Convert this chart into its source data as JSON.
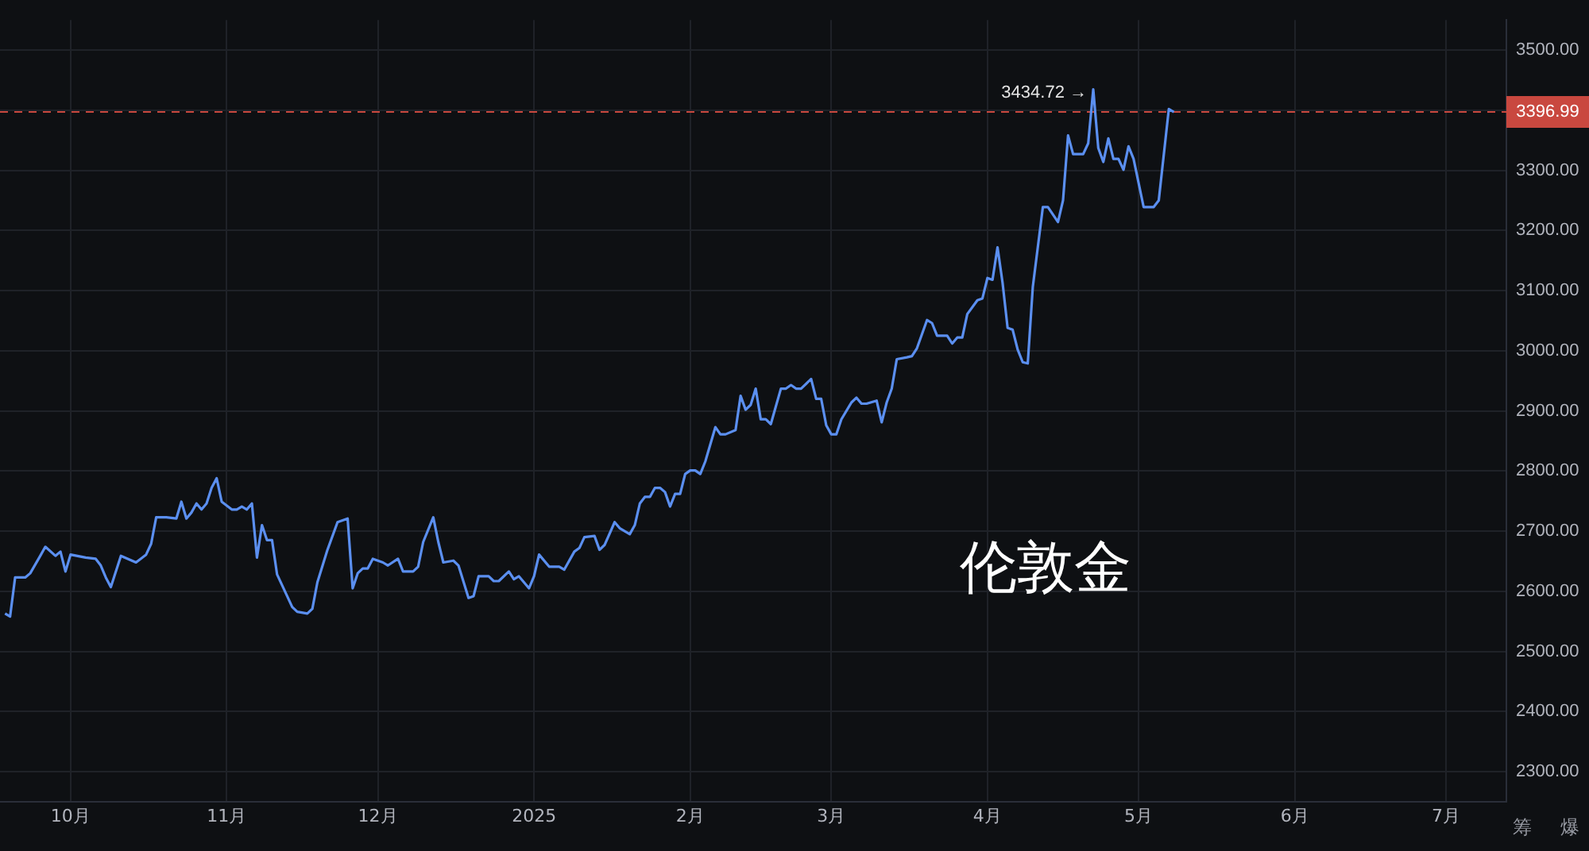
{
  "chart_data": {
    "type": "line",
    "marker": "none",
    "grid": true,
    "x": [
      "2024-09-18",
      "2024-09-19",
      "2024-09-20",
      "2024-09-22",
      "2024-09-23",
      "2024-09-25",
      "2024-09-26",
      "2024-09-28",
      "2024-09-29",
      "2024-09-30",
      "2024-10-01",
      "2024-10-04",
      "2024-10-06",
      "2024-10-07",
      "2024-10-08",
      "2024-10-09",
      "2024-10-11",
      "2024-10-14",
      "2024-10-16",
      "2024-10-17",
      "2024-10-18",
      "2024-10-20",
      "2024-10-22",
      "2024-10-23",
      "2024-10-24",
      "2024-10-25",
      "2024-10-26",
      "2024-10-27",
      "2024-10-28",
      "2024-10-29",
      "2024-10-30",
      "2024-10-31",
      "2024-11-02",
      "2024-11-03",
      "2024-11-04",
      "2024-11-05",
      "2024-11-06",
      "2024-11-07",
      "2024-11-08",
      "2024-11-09",
      "2024-11-10",
      "2024-11-11",
      "2024-11-14",
      "2024-11-15",
      "2024-11-17",
      "2024-11-18",
      "2024-11-19",
      "2024-11-21",
      "2024-11-23",
      "2024-11-24",
      "2024-11-25",
      "2024-11-26",
      "2024-11-27",
      "2024-11-28",
      "2024-11-29",
      "2024-11-30",
      "2024-12-02",
      "2024-12-03",
      "2024-12-05",
      "2024-12-06",
      "2024-12-08",
      "2024-12-09",
      "2024-12-10",
      "2024-12-12",
      "2024-12-13",
      "2024-12-14",
      "2024-12-16",
      "2024-12-17",
      "2024-12-19",
      "2024-12-20",
      "2024-12-21",
      "2024-12-23",
      "2024-12-24",
      "2024-12-25",
      "2024-12-27",
      "2024-12-28",
      "2024-12-29",
      "2024-12-31",
      "2025-01-01",
      "2025-01-02",
      "2025-01-04",
      "2025-01-06",
      "2025-01-07",
      "2025-01-09",
      "2025-01-10",
      "2025-01-11",
      "2025-01-13",
      "2025-01-14",
      "2025-01-15",
      "2025-01-17",
      "2025-01-18",
      "2025-01-20",
      "2025-01-21",
      "2025-01-22",
      "2025-01-23",
      "2025-01-24",
      "2025-01-25",
      "2025-01-26",
      "2025-01-27",
      "2025-01-28",
      "2025-01-29",
      "2025-01-30",
      "2025-01-31",
      "2025-02-01",
      "2025-02-02",
      "2025-02-03",
      "2025-02-04",
      "2025-02-06",
      "2025-02-07",
      "2025-02-08",
      "2025-02-10",
      "2025-02-11",
      "2025-02-12",
      "2025-02-13",
      "2025-02-14",
      "2025-02-15",
      "2025-02-16",
      "2025-02-17",
      "2025-02-19",
      "2025-02-20",
      "2025-02-21",
      "2025-02-22",
      "2025-02-23",
      "2025-02-25",
      "2025-02-26",
      "2025-02-27",
      "2025-02-28",
      "2025-03-01",
      "2025-03-02",
      "2025-03-03",
      "2025-03-05",
      "2025-03-06",
      "2025-03-07",
      "2025-03-08",
      "2025-03-10",
      "2025-03-11",
      "2025-03-12",
      "2025-03-13",
      "2025-03-14",
      "2025-03-16",
      "2025-03-17",
      "2025-03-18",
      "2025-03-20",
      "2025-03-21",
      "2025-03-22",
      "2025-03-24",
      "2025-03-25",
      "2025-03-26",
      "2025-03-27",
      "2025-03-28",
      "2025-03-30",
      "2025-03-31",
      "2025-04-01",
      "2025-04-02",
      "2025-04-03",
      "2025-04-04",
      "2025-04-05",
      "2025-04-06",
      "2025-04-07",
      "2025-04-08",
      "2025-04-09",
      "2025-04-10",
      "2025-04-12",
      "2025-04-13",
      "2025-04-15",
      "2025-04-16",
      "2025-04-17",
      "2025-04-18",
      "2025-04-20",
      "2025-04-21",
      "2025-04-22",
      "2025-04-23",
      "2025-04-24",
      "2025-04-25",
      "2025-04-26",
      "2025-04-27",
      "2025-04-28",
      "2025-04-29",
      "2025-04-30",
      "2025-05-02",
      "2025-05-04",
      "2025-05-05",
      "2025-05-07",
      "2025-05-08"
    ],
    "series": [
      {
        "color": "#5b8ff0",
        "values": [
          2563,
          2558,
          2623,
          2623,
          2630,
          2659,
          2674,
          2659,
          2666,
          2633,
          2661,
          2656,
          2654,
          2643,
          2623,
          2607,
          2659,
          2648,
          2661,
          2679,
          2723,
          2723,
          2721,
          2749,
          2721,
          2731,
          2746,
          2736,
          2746,
          2772,
          2788,
          2749,
          2736,
          2736,
          2741,
          2736,
          2746,
          2656,
          2710,
          2685,
          2685,
          2628,
          2574,
          2566,
          2563,
          2571,
          2615,
          2669,
          2715,
          2718,
          2721,
          2605,
          2630,
          2638,
          2638,
          2654,
          2648,
          2643,
          2654,
          2633,
          2633,
          2641,
          2682,
          2723,
          2682,
          2648,
          2651,
          2643,
          2589,
          2592,
          2625,
          2625,
          2617,
          2617,
          2633,
          2620,
          2625,
          2605,
          2625,
          2661,
          2641,
          2641,
          2636,
          2666,
          2672,
          2690,
          2692,
          2669,
          2677,
          2715,
          2705,
          2695,
          2710,
          2746,
          2757,
          2757,
          2772,
          2772,
          2765,
          2741,
          2762,
          2762,
          2795,
          2801,
          2801,
          2795,
          2816,
          2873,
          2861,
          2861,
          2868,
          2925,
          2902,
          2910,
          2937,
          2886,
          2886,
          2878,
          2937,
          2937,
          2943,
          2937,
          2937,
          2953,
          2920,
          2920,
          2876,
          2861,
          2861,
          2886,
          2914,
          2922,
          2912,
          2912,
          2917,
          2881,
          2914,
          2937,
          2986,
          2989,
          2991,
          3004,
          3051,
          3046,
          3025,
          3025,
          3012,
          3022,
          3022,
          3061,
          3084,
          3087,
          3121,
          3118,
          3172,
          3113,
          3038,
          3035,
          3002,
          2981,
          2979,
          3106,
          3239,
          3239,
          3214,
          3250,
          3358,
          3327,
          3327,
          3345,
          3434.72,
          3337,
          3314,
          3353,
          3319,
          3319,
          3301,
          3340,
          3319,
          3239,
          3239,
          3250,
          3402,
          3396.99
        ]
      }
    ],
    "xlim": [
      "2024-09-17",
      "2025-07-13"
    ],
    "xticks": [
      {
        "value": "2024-10-01",
        "label": "10月"
      },
      {
        "value": "2024-11-01",
        "label": "11月"
      },
      {
        "value": "2024-12-01",
        "label": "12月"
      },
      {
        "value": "2025-01-01",
        "label": "2025"
      },
      {
        "value": "2025-02-01",
        "label": "2月"
      },
      {
        "value": "2025-03-01",
        "label": "3月"
      },
      {
        "value": "2025-04-01",
        "label": "4月"
      },
      {
        "value": "2025-05-01",
        "label": "5月"
      },
      {
        "value": "2025-06-01",
        "label": "6月"
      },
      {
        "value": "2025-07-01",
        "label": "7月"
      }
    ],
    "ylim": [
      2250,
      3550
    ],
    "yticks": [
      {
        "value": 2300,
        "label": "2300.00"
      },
      {
        "value": 2400,
        "label": "2400.00"
      },
      {
        "value": 2500,
        "label": "2500.00"
      },
      {
        "value": 2600,
        "label": "2600.00"
      },
      {
        "value": 2700,
        "label": "2700.00"
      },
      {
        "value": 2800,
        "label": "2800.00"
      },
      {
        "value": 2900,
        "label": "2900.00"
      },
      {
        "value": 3000,
        "label": "3000.00"
      },
      {
        "value": 3100,
        "label": "3100.00"
      },
      {
        "value": 3200,
        "label": "3200.00"
      },
      {
        "value": 3300,
        "label": "3300.00"
      },
      {
        "value": 3400,
        "label": null
      },
      {
        "value": 3500,
        "label": "3500.00"
      }
    ],
    "ref_lines": [
      {
        "axis": "y",
        "value": 3396.99,
        "label": "3396.99",
        "color": "#c9483f",
        "line_style": "dashed"
      }
    ],
    "annotations": [
      {
        "text": "3434.72 →",
        "x": "2025-04-22",
        "y": 3434.72
      },
      "伦敦金",
      "筹",
      "爆"
    ]
  }
}
